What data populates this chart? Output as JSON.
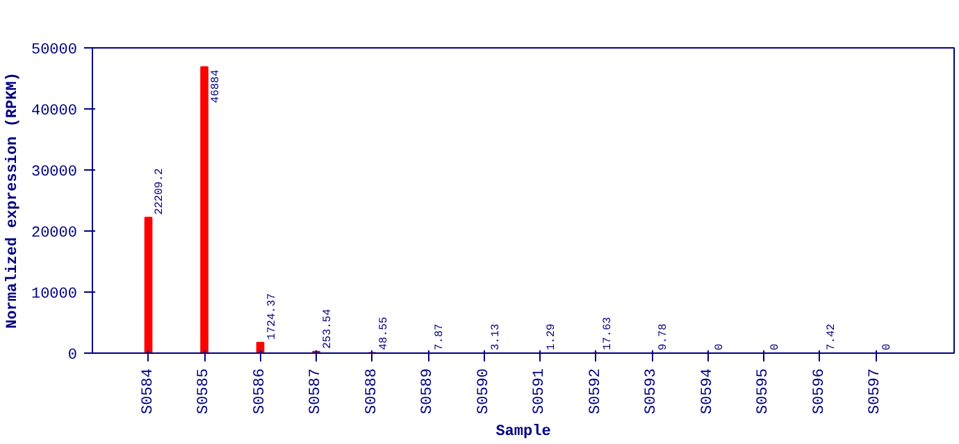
{
  "chart_data": {
    "type": "bar",
    "xlabel": "Sample",
    "ylabel": "Normalized expression (RPKM)",
    "categories": [
      "S0584",
      "S0585",
      "S0586",
      "S0587",
      "S0588",
      "S0589",
      "S0590",
      "S0591",
      "S0592",
      "S0593",
      "S0594",
      "S0595",
      "S0596",
      "S0597"
    ],
    "values": [
      22209.2,
      46884,
      1724.37,
      253.54,
      48.55,
      7.87,
      3.13,
      1.29,
      17.63,
      9.78,
      0,
      0,
      7.42,
      0
    ],
    "color": "#ff0000",
    "ylim": [
      0,
      50000
    ],
    "yticks": [
      0,
      10000,
      20000,
      30000,
      40000,
      50000
    ],
    "grid": false,
    "data_labels": true
  }
}
